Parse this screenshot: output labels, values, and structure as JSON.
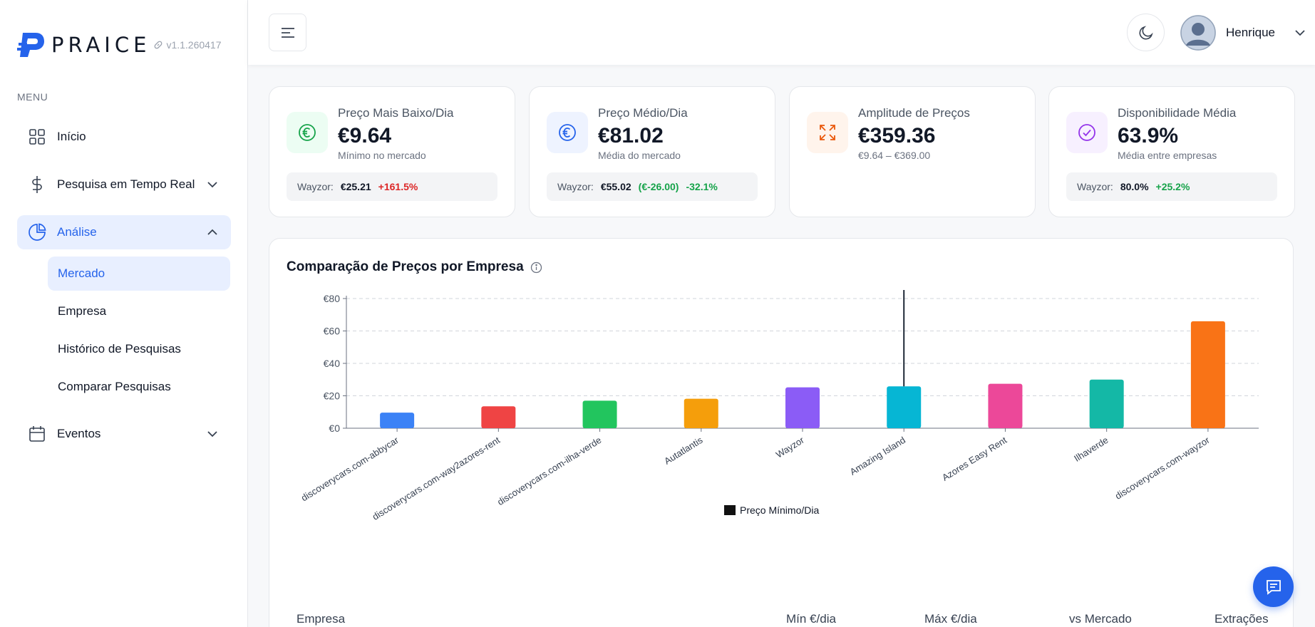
{
  "app": {
    "name": "PRAICE",
    "version": "v1.1.260417"
  },
  "sidebar": {
    "menu_heading": "MENU",
    "items": [
      {
        "label": "Início",
        "icon": "grid-icon"
      },
      {
        "label": "Pesquisa em Tempo Real",
        "icon": "dollar-icon"
      },
      {
        "label": "Análise",
        "icon": "pie-chart-icon"
      },
      {
        "label": "Eventos",
        "icon": "calendar-icon"
      }
    ],
    "sub_items": [
      {
        "label": "Mercado"
      },
      {
        "label": "Empresa"
      },
      {
        "label": "Histórico de Pesquisas"
      },
      {
        "label": "Comparar Pesquisas"
      }
    ]
  },
  "header": {
    "user_name": "Henrique"
  },
  "cards": [
    {
      "label": "Preço Mais Baixo/Dia",
      "value": "€9.64",
      "sub": "Mínimo no mercado",
      "cmp_who": "Wayzor:",
      "cmp_value": "€25.21",
      "cmp_delta1": "+161.5%",
      "cmp_delta2": "",
      "accent": "#16a34a",
      "accent_bg": "#ecfdf3"
    },
    {
      "label": "Preço Médio/Dia",
      "value": "€81.02",
      "sub": "Média do mercado",
      "cmp_who": "Wayzor:",
      "cmp_value": "€55.02",
      "cmp_delta1": "(€-26.00)",
      "cmp_delta2": "-32.1%",
      "accent": "#2563eb",
      "accent_bg": "#eef3ff"
    },
    {
      "label": "Amplitude de Preços",
      "value": "€359.36",
      "sub": "€9.64 – €369.00",
      "accent": "#ea580c",
      "accent_bg": "#fff4ec"
    },
    {
      "label": "Disponibilidade Média",
      "value": "63.9%",
      "sub": "Média entre empresas",
      "cmp_who": "Wayzor:",
      "cmp_value": "80.0%",
      "cmp_delta1": "+25.2%",
      "cmp_delta2": "",
      "accent": "#9333ea",
      "accent_bg": "#f7f0ff"
    }
  ],
  "chart_panel": {
    "title": "Comparação de Preços por Empresa"
  },
  "chart_data": {
    "type": "bar",
    "categories": [
      "discoverycars.com-abbycar",
      "discoverycars.com-way2azores-rent",
      "discoverycars.com-ilha-verde",
      "Autatlantis",
      "Wayzor",
      "Amazing Island",
      "Azores Easy Rent",
      "Ilhaverde",
      "discoverycars.com-wayzor"
    ],
    "series": [
      {
        "name": "Preço Mínimo/Dia",
        "values": [
          9.64,
          13.5,
          17,
          18.2,
          25.21,
          25.8,
          27.4,
          30,
          66
        ],
        "colors": [
          "#3b82f6",
          "#ef4444",
          "#22c55e",
          "#f59e0b",
          "#8b5cf6",
          "#06b6d4",
          "#ec4899",
          "#14b8a6",
          "#f97316"
        ]
      }
    ],
    "yticks": [
      "€0",
      "€20",
      "€40",
      "€60",
      "€80"
    ],
    "ylim": [
      0,
      80
    ],
    "grid": true,
    "legend": "bottom"
  },
  "table": {
    "headers": [
      "Empresa",
      "Mín €/dia",
      "Máx €/dia",
      "vs Mercado",
      "Extrações"
    ]
  }
}
